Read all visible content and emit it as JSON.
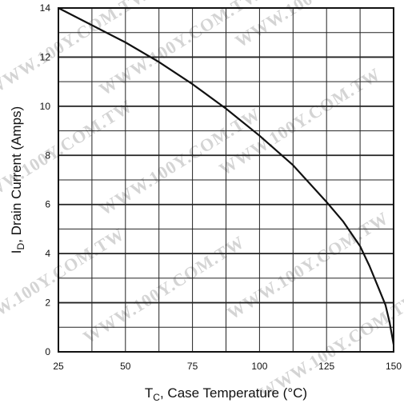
{
  "watermark": "WWW.100Y.COM.TW",
  "chart_data": {
    "type": "line",
    "title": "",
    "xlabel": {
      "symbol": "T",
      "subscript": "C",
      "text": ", Case Temperature (°C)"
    },
    "ylabel": {
      "symbol": "I",
      "subscript": "D",
      "text": ", Drain Current (Amps)"
    },
    "xlim": [
      25,
      150
    ],
    "ylim": [
      0,
      14
    ],
    "x_ticks": [
      25,
      50,
      75,
      100,
      125,
      150
    ],
    "y_ticks": [
      0,
      2,
      4,
      6,
      8,
      10,
      12,
      14
    ],
    "grid": true,
    "series": [
      {
        "x": [
          25,
          37.5,
          50,
          62.5,
          75,
          87.5,
          100,
          112.5,
          125,
          131.25,
          137.5,
          141,
          144,
          147,
          148.5,
          150
        ],
        "y": [
          14.0,
          13.3,
          12.6,
          11.8,
          10.9,
          9.9,
          8.8,
          7.6,
          6.1,
          5.3,
          4.3,
          3.5,
          2.7,
          1.9,
          1.2,
          0.3
        ]
      }
    ]
  }
}
